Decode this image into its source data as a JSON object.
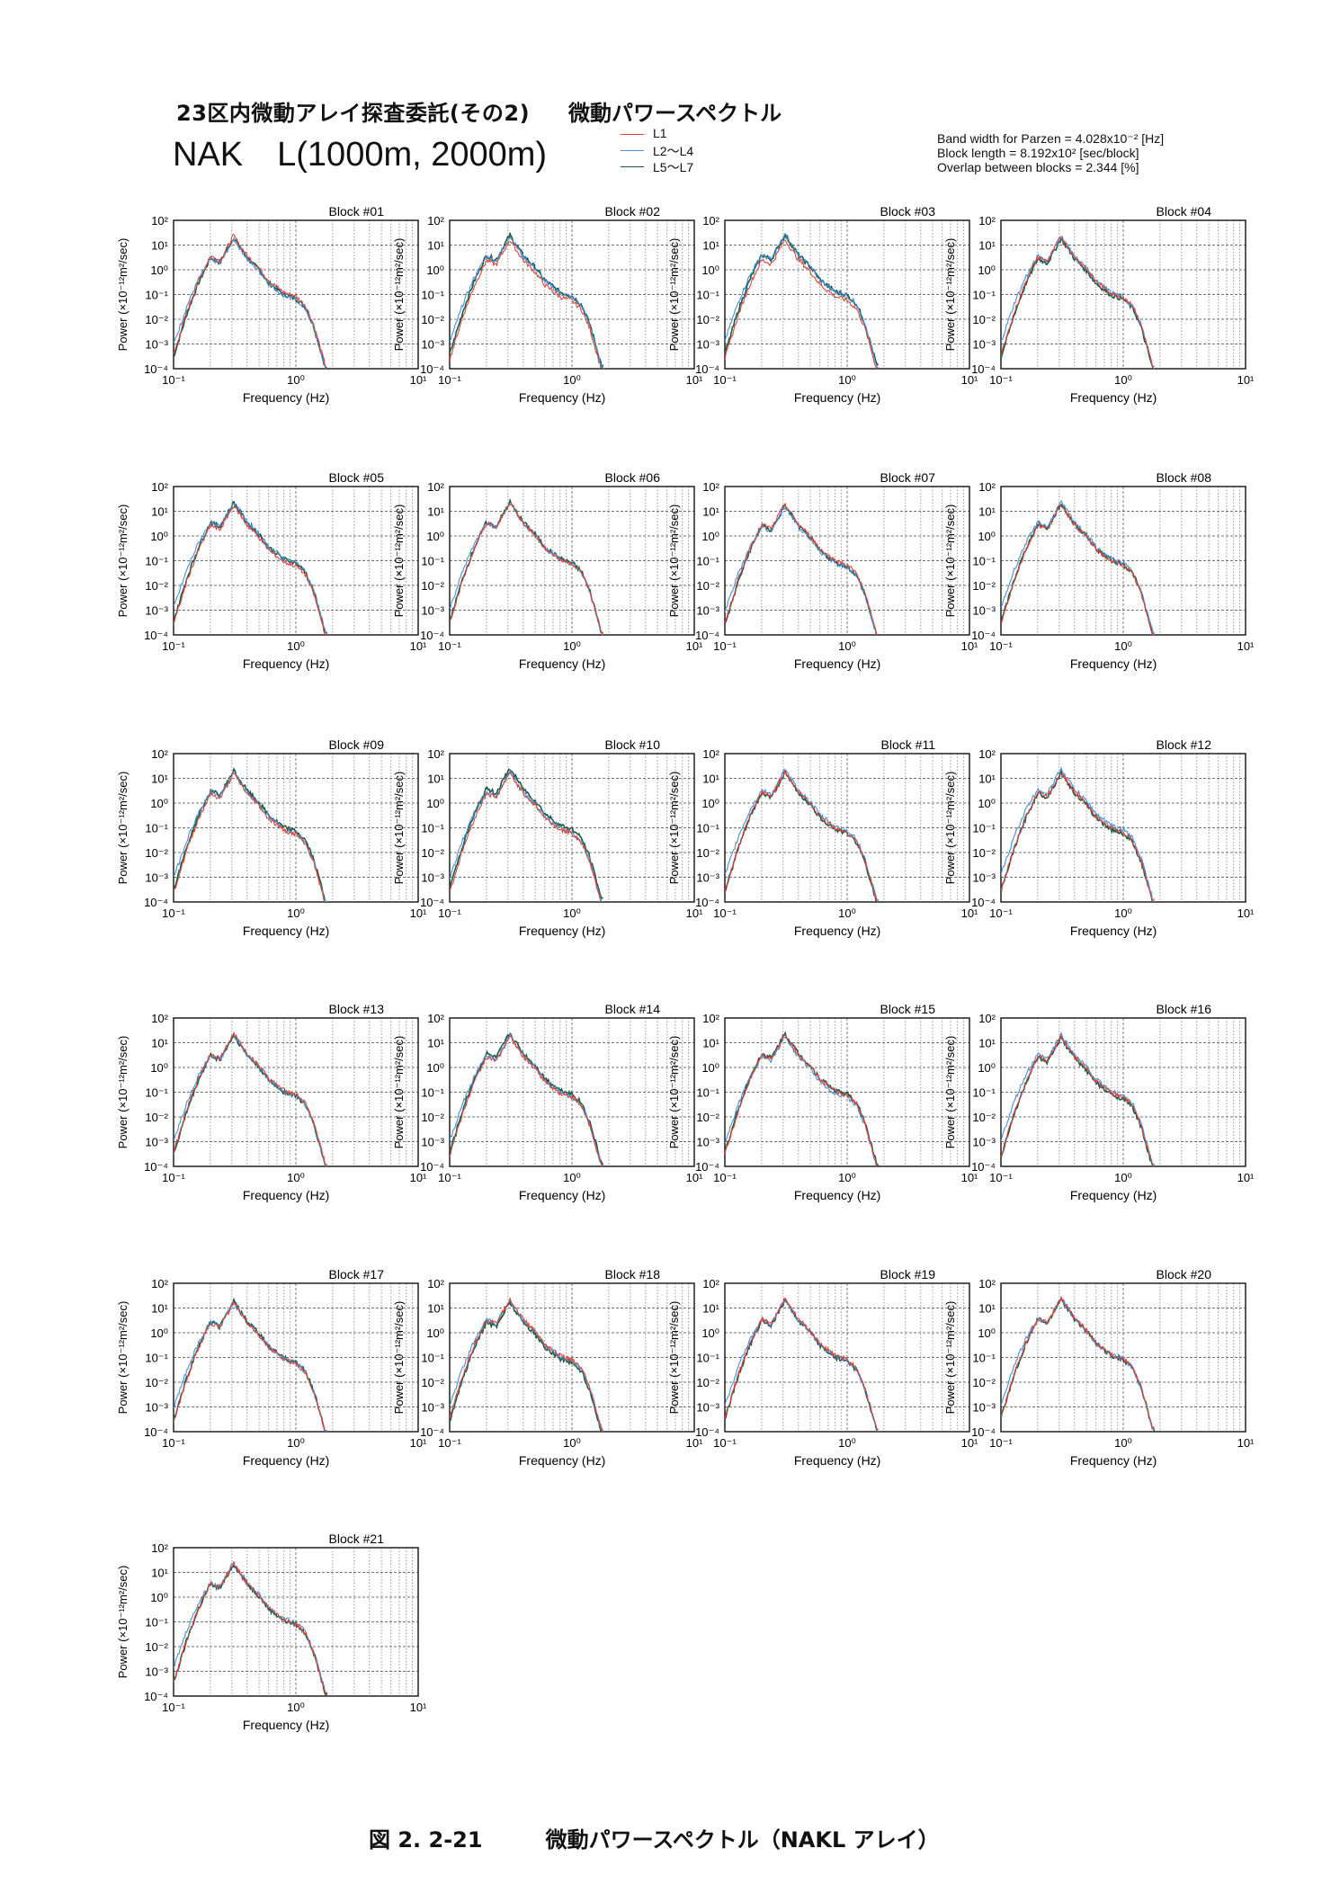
{
  "header": {
    "project": "23区内微動アレイ探査委託(その2)",
    "doc_title": "微動パワースペクトル",
    "site": "NAK　L(1000m, 2000m)",
    "params": [
      "Band width for Parzen = 4.028x10⁻² [Hz]",
      "Block length = 8.192x10² [sec/block]",
      "Overlap between blocks = 2.344 [%]"
    ]
  },
  "legend": [
    {
      "label": "L1",
      "color": "#d9473e"
    },
    {
      "label": "L2～L4",
      "color": "#4a8fd6"
    },
    {
      "label": "L5～L7",
      "color": "#1f5a45"
    }
  ],
  "caption": {
    "number": "図 2. 2-21",
    "text": "微動パワースペクトル（NAKL アレイ）"
  },
  "chart_data": {
    "type": "line",
    "x_scale": "log",
    "y_scale": "log",
    "xlim": [
      0.1,
      10
    ],
    "ylim": [
      0.0001,
      100
    ],
    "xlabel": "Frequency (Hz)",
    "ylabel": "Power (×10⁻¹²m²/sec)",
    "x_ticks": [
      "10⁻¹",
      "10⁰",
      "10¹"
    ],
    "y_ticks": [
      "10⁻⁴",
      "10⁻³",
      "10⁻²",
      "10⁻¹",
      "10⁰",
      "10¹",
      "10²"
    ],
    "grid": true,
    "legend_position": "top-center",
    "series_names": [
      "L1",
      "L2～L4",
      "L5～L7"
    ],
    "curve_frequency_hz": [
      0.1,
      0.13,
      0.16,
      0.2,
      0.24,
      0.28,
      0.31,
      0.35,
      0.4,
      0.5,
      0.6,
      0.8,
      1.0,
      1.2,
      1.4,
      1.6,
      1.75
    ],
    "curve_power": [
      0.0003,
      0.02,
      0.3,
      3.0,
      2.0,
      8.0,
      20.0,
      8.0,
      3.0,
      1.0,
      0.3,
      0.1,
      0.07,
      0.03,
      0.005,
      0.0005,
      0.0001
    ],
    "blocks": [
      {
        "title": "Block #01"
      },
      {
        "title": "Block #02"
      },
      {
        "title": "Block #03"
      },
      {
        "title": "Block #04"
      },
      {
        "title": "Block #05"
      },
      {
        "title": "Block #06"
      },
      {
        "title": "Block #07"
      },
      {
        "title": "Block #08"
      },
      {
        "title": "Block #09"
      },
      {
        "title": "Block #10"
      },
      {
        "title": "Block #11"
      },
      {
        "title": "Block #12"
      },
      {
        "title": "Block #13"
      },
      {
        "title": "Block #14"
      },
      {
        "title": "Block #15"
      },
      {
        "title": "Block #16"
      },
      {
        "title": "Block #17"
      },
      {
        "title": "Block #18"
      },
      {
        "title": "Block #19"
      },
      {
        "title": "Block #20"
      },
      {
        "title": "Block #21"
      }
    ]
  }
}
